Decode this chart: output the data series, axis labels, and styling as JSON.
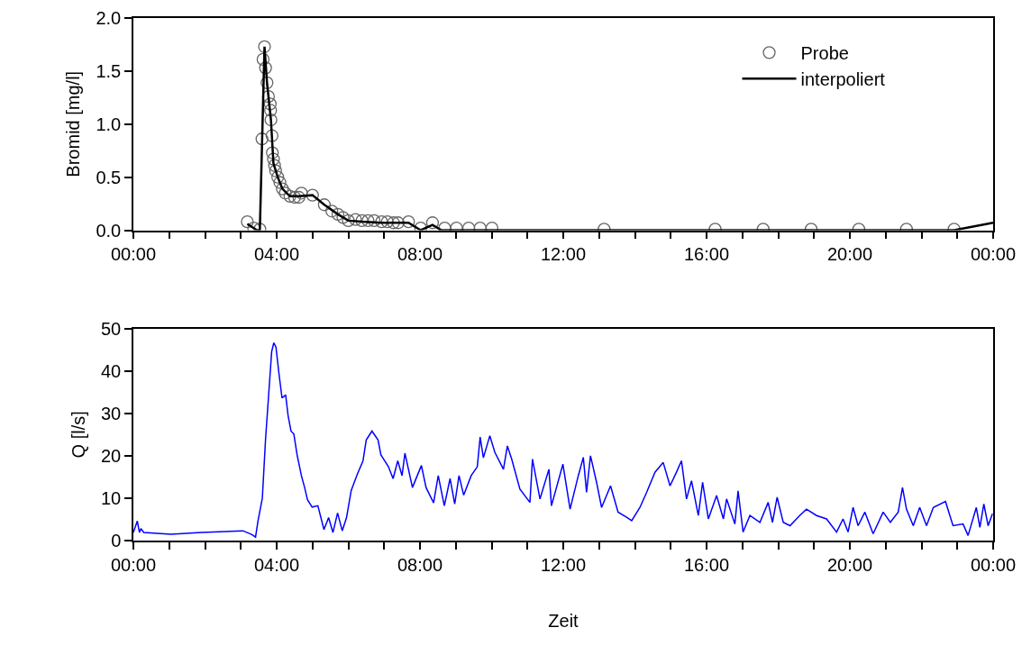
{
  "chart_data": [
    {
      "type": "scatter",
      "ylabel": "Bromid [mg/l]",
      "xlim": [
        0,
        24
      ],
      "ylim": [
        0,
        2.0
      ],
      "xticks": [
        {
          "value": 0,
          "label": "00:00"
        },
        {
          "value": 1,
          "label": null
        },
        {
          "value": 2,
          "label": null
        },
        {
          "value": 3,
          "label": null
        },
        {
          "value": 4,
          "label": "04:00"
        },
        {
          "value": 5,
          "label": null
        },
        {
          "value": 6,
          "label": null
        },
        {
          "value": 7,
          "label": null
        },
        {
          "value": 8,
          "label": "08:00"
        },
        {
          "value": 9,
          "label": null
        },
        {
          "value": 10,
          "label": null
        },
        {
          "value": 11,
          "label": null
        },
        {
          "value": 12,
          "label": "12:00"
        },
        {
          "value": 13,
          "label": null
        },
        {
          "value": 14,
          "label": null
        },
        {
          "value": 15,
          "label": null
        },
        {
          "value": 16,
          "label": "16:00"
        },
        {
          "value": 17,
          "label": null
        },
        {
          "value": 18,
          "label": null
        },
        {
          "value": 19,
          "label": null
        },
        {
          "value": 20,
          "label": "20:00"
        },
        {
          "value": 21,
          "label": null
        },
        {
          "value": 22,
          "label": null
        },
        {
          "value": 23,
          "label": null
        },
        {
          "value": 24,
          "label": "00:00"
        }
      ],
      "yticks": [
        {
          "value": 0,
          "label": "0.0"
        },
        {
          "value": 0.5,
          "label": "0.5"
        },
        {
          "value": 1.0,
          "label": "1.0"
        },
        {
          "value": 1.5,
          "label": "1.5"
        },
        {
          "value": 2.0,
          "label": "2.0"
        }
      ],
      "legend": "top right",
      "series": [
        {
          "name": "Probe",
          "type": "scatter",
          "marker": "circle",
          "color": "#666666",
          "x": [
            3.18,
            3.36,
            3.53,
            3.59,
            3.66,
            3.62,
            3.69,
            3.73,
            3.77,
            3.82,
            3.83,
            3.84,
            3.87,
            3.88,
            3.91,
            3.94,
            3.97,
            4.03,
            4.09,
            4.16,
            4.24,
            4.37,
            4.5,
            4.62,
            4.69,
            5.0,
            5.33,
            5.54,
            5.71,
            5.85,
            6.0,
            6.2,
            6.38,
            6.55,
            6.72,
            6.93,
            7.09,
            7.26,
            7.39,
            7.68,
            8.02,
            8.35,
            8.69,
            9.02,
            9.36,
            9.68,
            10.01,
            13.14,
            16.24,
            17.58,
            18.92,
            20.25,
            21.58,
            22.91
          ],
          "values": [
            0.08,
            0.02,
            0.01,
            0.86,
            1.73,
            1.61,
            1.53,
            1.39,
            1.26,
            1.19,
            1.13,
            1.04,
            0.89,
            0.73,
            0.67,
            0.61,
            0.56,
            0.5,
            0.45,
            0.39,
            0.35,
            0.32,
            0.31,
            0.31,
            0.35,
            0.33,
            0.24,
            0.18,
            0.15,
            0.12,
            0.09,
            0.1,
            0.09,
            0.09,
            0.09,
            0.08,
            0.08,
            0.07,
            0.07,
            0.08,
            0.02,
            0.07,
            0.02,
            0.02,
            0.02,
            0.02,
            0.02,
            0.01,
            0.01,
            0.01,
            0.01,
            0.01,
            0.01,
            0.01
          ]
        },
        {
          "name": "interpoliert",
          "type": "line",
          "marker": "none",
          "line_style": "solid",
          "color": "#000000",
          "x": [
            3.18,
            3.45,
            3.53,
            3.66,
            3.73,
            3.84,
            3.91,
            4.03,
            4.16,
            4.37,
            4.62,
            5.0,
            5.33,
            5.71,
            6.0,
            6.38,
            6.93,
            7.39,
            7.68,
            8.02,
            8.35,
            8.6,
            22.91,
            24
          ],
          "values": [
            0.06,
            0.0,
            0.0,
            1.73,
            1.39,
            1.04,
            0.63,
            0.5,
            0.39,
            0.32,
            0.32,
            0.33,
            0.24,
            0.15,
            0.09,
            0.08,
            0.07,
            0.07,
            0.07,
            0.0,
            0.05,
            0.0,
            0.0,
            0.07
          ]
        }
      ]
    },
    {
      "type": "line",
      "xlabel": "Zeit",
      "ylabel": "Q [l/s]",
      "xlim": [
        0,
        24
      ],
      "ylim": [
        0,
        50
      ],
      "xticks": [
        {
          "value": 0,
          "label": "00:00"
        },
        {
          "value": 1,
          "label": null
        },
        {
          "value": 2,
          "label": null
        },
        {
          "value": 3,
          "label": null
        },
        {
          "value": 4,
          "label": "04:00"
        },
        {
          "value": 5,
          "label": null
        },
        {
          "value": 6,
          "label": null
        },
        {
          "value": 7,
          "label": null
        },
        {
          "value": 8,
          "label": "08:00"
        },
        {
          "value": 9,
          "label": null
        },
        {
          "value": 10,
          "label": null
        },
        {
          "value": 11,
          "label": null
        },
        {
          "value": 12,
          "label": "12:00"
        },
        {
          "value": 13,
          "label": null
        },
        {
          "value": 14,
          "label": null
        },
        {
          "value": 15,
          "label": null
        },
        {
          "value": 16,
          "label": "16:00"
        },
        {
          "value": 17,
          "label": null
        },
        {
          "value": 18,
          "label": null
        },
        {
          "value": 19,
          "label": null
        },
        {
          "value": 20,
          "label": "20:00"
        },
        {
          "value": 21,
          "label": null
        },
        {
          "value": 22,
          "label": null
        },
        {
          "value": 23,
          "label": null
        },
        {
          "value": 24,
          "label": "00:00"
        }
      ],
      "yticks": [
        0,
        10,
        20,
        30,
        40,
        50
      ],
      "legend": false,
      "marker": "none",
      "line_style": "solid",
      "series": [
        {
          "color": "#0000ff",
          "x": [
            0,
            0.11,
            0.17,
            0.21,
            0.29,
            1.05,
            1.89,
            3.06,
            3.31,
            3.41,
            3.48,
            3.6,
            3.69,
            3.77,
            3.86,
            3.92,
            3.98,
            4.07,
            4.15,
            4.25,
            4.32,
            4.4,
            4.48,
            4.57,
            4.69,
            4.78,
            4.86,
            4.99,
            5.15,
            5.32,
            5.45,
            5.57,
            5.7,
            5.83,
            5.95,
            6.08,
            6.25,
            6.41,
            6.5,
            6.66,
            6.83,
            6.91,
            7.12,
            7.25,
            7.38,
            7.5,
            7.58,
            7.79,
            8.04,
            8.17,
            8.38,
            8.51,
            8.68,
            8.84,
            8.97,
            9.09,
            9.22,
            9.43,
            9.6,
            9.68,
            9.77,
            9.95,
            10.09,
            10.33,
            10.44,
            10.56,
            10.79,
            11.07,
            11.14,
            11.35,
            11.6,
            11.67,
            11.99,
            12.19,
            12.42,
            12.56,
            12.65,
            12.76,
            12.93,
            13.07,
            13.32,
            13.53,
            13.77,
            13.91,
            14.14,
            14.33,
            14.56,
            14.79,
            14.98,
            15.16,
            15.3,
            15.44,
            15.58,
            15.77,
            15.89,
            16.05,
            16.28,
            16.47,
            16.56,
            16.79,
            16.88,
            17.02,
            17.21,
            17.49,
            17.72,
            17.84,
            17.97,
            18.14,
            18.33,
            18.6,
            18.79,
            19.07,
            19.35,
            19.63,
            19.81,
            19.95,
            20.09,
            20.23,
            20.42,
            20.65,
            20.93,
            21.13,
            21.35,
            21.47,
            21.58,
            21.77,
            21.95,
            22.14,
            22.33,
            22.67,
            22.88,
            23.16,
            23.3,
            23.53,
            23.63,
            23.74,
            23.86,
            23.98
          ],
          "values": [
            1.9,
            4.6,
            1.9,
            2.8,
            1.9,
            1.5,
            1.9,
            2.3,
            1.4,
            0.8,
            4.7,
            10,
            24,
            33.6,
            44.5,
            46.6,
            45.6,
            38.9,
            33.6,
            34.3,
            29.4,
            25.8,
            25.1,
            20.2,
            15.3,
            12.5,
            9.6,
            7.9,
            8.2,
            2.6,
            5.4,
            1.9,
            6.5,
            2.3,
            5.4,
            11.8,
            15.6,
            18.8,
            23.7,
            25.8,
            23.7,
            20.2,
            17.4,
            14.6,
            18.8,
            15.3,
            20.6,
            12.5,
            17.7,
            12.5,
            8.9,
            15.3,
            8.2,
            14.6,
            8.6,
            15.3,
            10.7,
            15.3,
            17.4,
            24.4,
            19.5,
            24.7,
            20.8,
            16.8,
            22.3,
            19.2,
            12.1,
            9.0,
            19.2,
            9.8,
            16.8,
            8.2,
            18.0,
            7.4,
            15.3,
            19.6,
            11.4,
            20.0,
            13.7,
            7.8,
            12.9,
            6.7,
            5.5,
            4.7,
            7.8,
            11.4,
            16.1,
            18.4,
            12.9,
            16.1,
            18.8,
            9.8,
            14.1,
            5.9,
            13.7,
            5.1,
            10.6,
            5.1,
            9.8,
            3.9,
            11.7,
            2.0,
            5.9,
            4.3,
            9.0,
            4.3,
            10.2,
            4.3,
            3.5,
            5.9,
            7.4,
            5.9,
            5.1,
            2.0,
            5.1,
            2.0,
            7.8,
            3.5,
            6.7,
            1.6,
            6.7,
            4.3,
            6.7,
            12.5,
            7.4,
            3.5,
            7.8,
            3.5,
            7.8,
            9.2,
            3.5,
            3.9,
            1.2,
            7.8,
            3.1,
            8.6,
            3.5,
            6.3
          ]
        }
      ]
    }
  ]
}
